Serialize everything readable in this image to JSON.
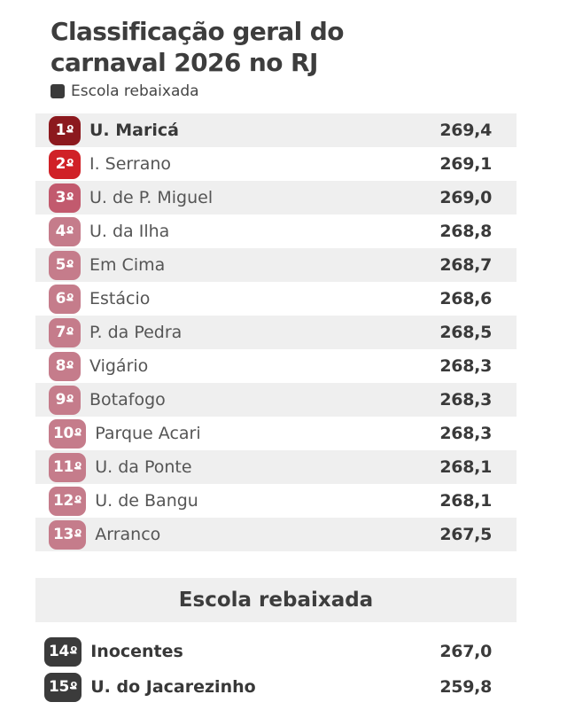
{
  "header": {
    "title_lines": [
      "Classificação geral do",
      "carnaval 2026 no RJ"
    ],
    "legend_label": "Escola rebaixada",
    "legend_color": "#3b3b3b"
  },
  "colors": {
    "stripe": "#efefef",
    "text_dark": "#3d3d3d",
    "badge_text": "#ffffff",
    "badge_first": "#8c191e",
    "badge_second": "#d02127",
    "badge_third": "#c25a6e",
    "badge_mid": "#c57c8b",
    "badge_relegated": "#3b3b3b"
  },
  "main_ranking": {
    "rows": [
      {
        "rank": "1",
        "ordinal": "º",
        "name": "U. Maricá",
        "score": "269,4",
        "badge_color": "#8c191e",
        "bold": true
      },
      {
        "rank": "2",
        "ordinal": "º",
        "name": "I. Serrano",
        "score": "269,1",
        "badge_color": "#d02127",
        "bold": false
      },
      {
        "rank": "3",
        "ordinal": "º",
        "name": "U. de P. Miguel",
        "score": "269,0",
        "badge_color": "#c25a6e",
        "bold": false
      },
      {
        "rank": "4",
        "ordinal": "º",
        "name": "U. da Ilha",
        "score": "268,8",
        "badge_color": "#c57c8b",
        "bold": false
      },
      {
        "rank": "5",
        "ordinal": "º",
        "name": "Em Cima",
        "score": "268,7",
        "badge_color": "#c57c8b",
        "bold": false
      },
      {
        "rank": "6",
        "ordinal": "º",
        "name": "Estácio",
        "score": "268,6",
        "badge_color": "#c57c8b",
        "bold": false
      },
      {
        "rank": "7",
        "ordinal": "º",
        "name": "P. da Pedra",
        "score": "268,5",
        "badge_color": "#c57c8b",
        "bold": false
      },
      {
        "rank": "8",
        "ordinal": "º",
        "name": "Vigário",
        "score": "268,3",
        "badge_color": "#c57c8b",
        "bold": false
      },
      {
        "rank": "9",
        "ordinal": "º",
        "name": "Botafogo",
        "score": "268,3",
        "badge_color": "#c57c8b",
        "bold": false
      },
      {
        "rank": "10",
        "ordinal": "º",
        "name": "Parque Acari",
        "score": "268,3",
        "badge_color": "#c57c8b",
        "bold": false
      },
      {
        "rank": "11",
        "ordinal": "º",
        "name": "U. da Ponte",
        "score": "268,1",
        "badge_color": "#c57c8b",
        "bold": false
      },
      {
        "rank": "12",
        "ordinal": "º",
        "name": "U. de Bangu",
        "score": "268,1",
        "badge_color": "#c57c8b",
        "bold": false
      },
      {
        "rank": "13",
        "ordinal": "º",
        "name": "Arranco",
        "score": "267,5",
        "badge_color": "#c57c8b",
        "bold": false
      }
    ]
  },
  "relegated_section": {
    "header": "Escola rebaixada",
    "rows": [
      {
        "rank": "14",
        "ordinal": "º",
        "name": "Inocentes",
        "score": "267,0",
        "badge_color": "#3b3b3b",
        "bold": true
      },
      {
        "rank": "15",
        "ordinal": "º",
        "name": "U. do Jacarezinho",
        "score": "259,8",
        "badge_color": "#3b3b3b",
        "bold": true
      }
    ]
  },
  "chart_data": {
    "type": "table",
    "title": "Classificação geral do carnaval 2026 no RJ",
    "legend": [
      {
        "label": "Escola rebaixada",
        "color": "#3b3b3b"
      }
    ],
    "columns": [
      "posicao",
      "escola",
      "pontuacao"
    ],
    "rows": [
      [
        "1º",
        "U. Maricá",
        269.4
      ],
      [
        "2º",
        "I. Serrano",
        269.1
      ],
      [
        "3º",
        "U. de P. Miguel",
        269.0
      ],
      [
        "4º",
        "U. da Ilha",
        268.8
      ],
      [
        "5º",
        "Em Cima",
        268.7
      ],
      [
        "6º",
        "Estácio",
        268.6
      ],
      [
        "7º",
        "P. da Pedra",
        268.5
      ],
      [
        "8º",
        "Vigário",
        268.3
      ],
      [
        "9º",
        "Botafogo",
        268.3
      ],
      [
        "10º",
        "Parque Acari",
        268.3
      ],
      [
        "11º",
        "U. da Ponte",
        268.1
      ],
      [
        "12º",
        "U. de Bangu",
        268.1
      ],
      [
        "13º",
        "Arranco",
        267.5
      ],
      [
        "14º",
        "Inocentes",
        267.0
      ],
      [
        "15º",
        "U. do Jacarezinho",
        259.8
      ]
    ],
    "relegated_ranks": [
      "14º",
      "15º"
    ]
  }
}
